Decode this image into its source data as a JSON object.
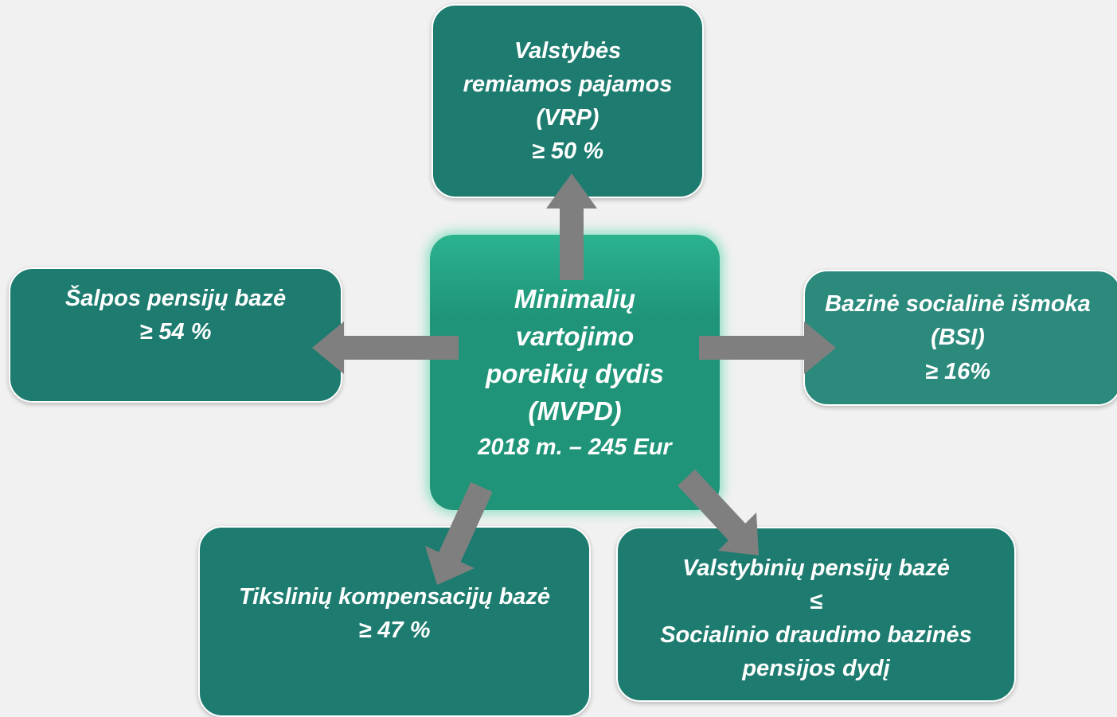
{
  "center": {
    "lines": [
      "Minimalių",
      "vartojimo",
      "poreikių dydis",
      "(MVPD)",
      "2018 m. – 245 Eur"
    ]
  },
  "nodes": [
    {
      "lines": [
        "Valstybės",
        "remiamos pajamos",
        "(VRP)",
        "≥ 50 %"
      ]
    },
    {
      "lines": [
        "Šalpos pensijų bazė",
        "≥ 54 %"
      ]
    },
    {
      "lines": [
        "Bazinė socialinė išmoka",
        "(BSI)",
        "≥ 16%"
      ]
    },
    {
      "lines": [
        "Tikslinių kompensacijų bazė",
        "≥ 47 %"
      ]
    },
    {
      "lines": [
        "Valstybinių pensijų bazė",
        "≤",
        "Socialinio draudimo bazinės",
        "pensijos dydį"
      ]
    }
  ]
}
